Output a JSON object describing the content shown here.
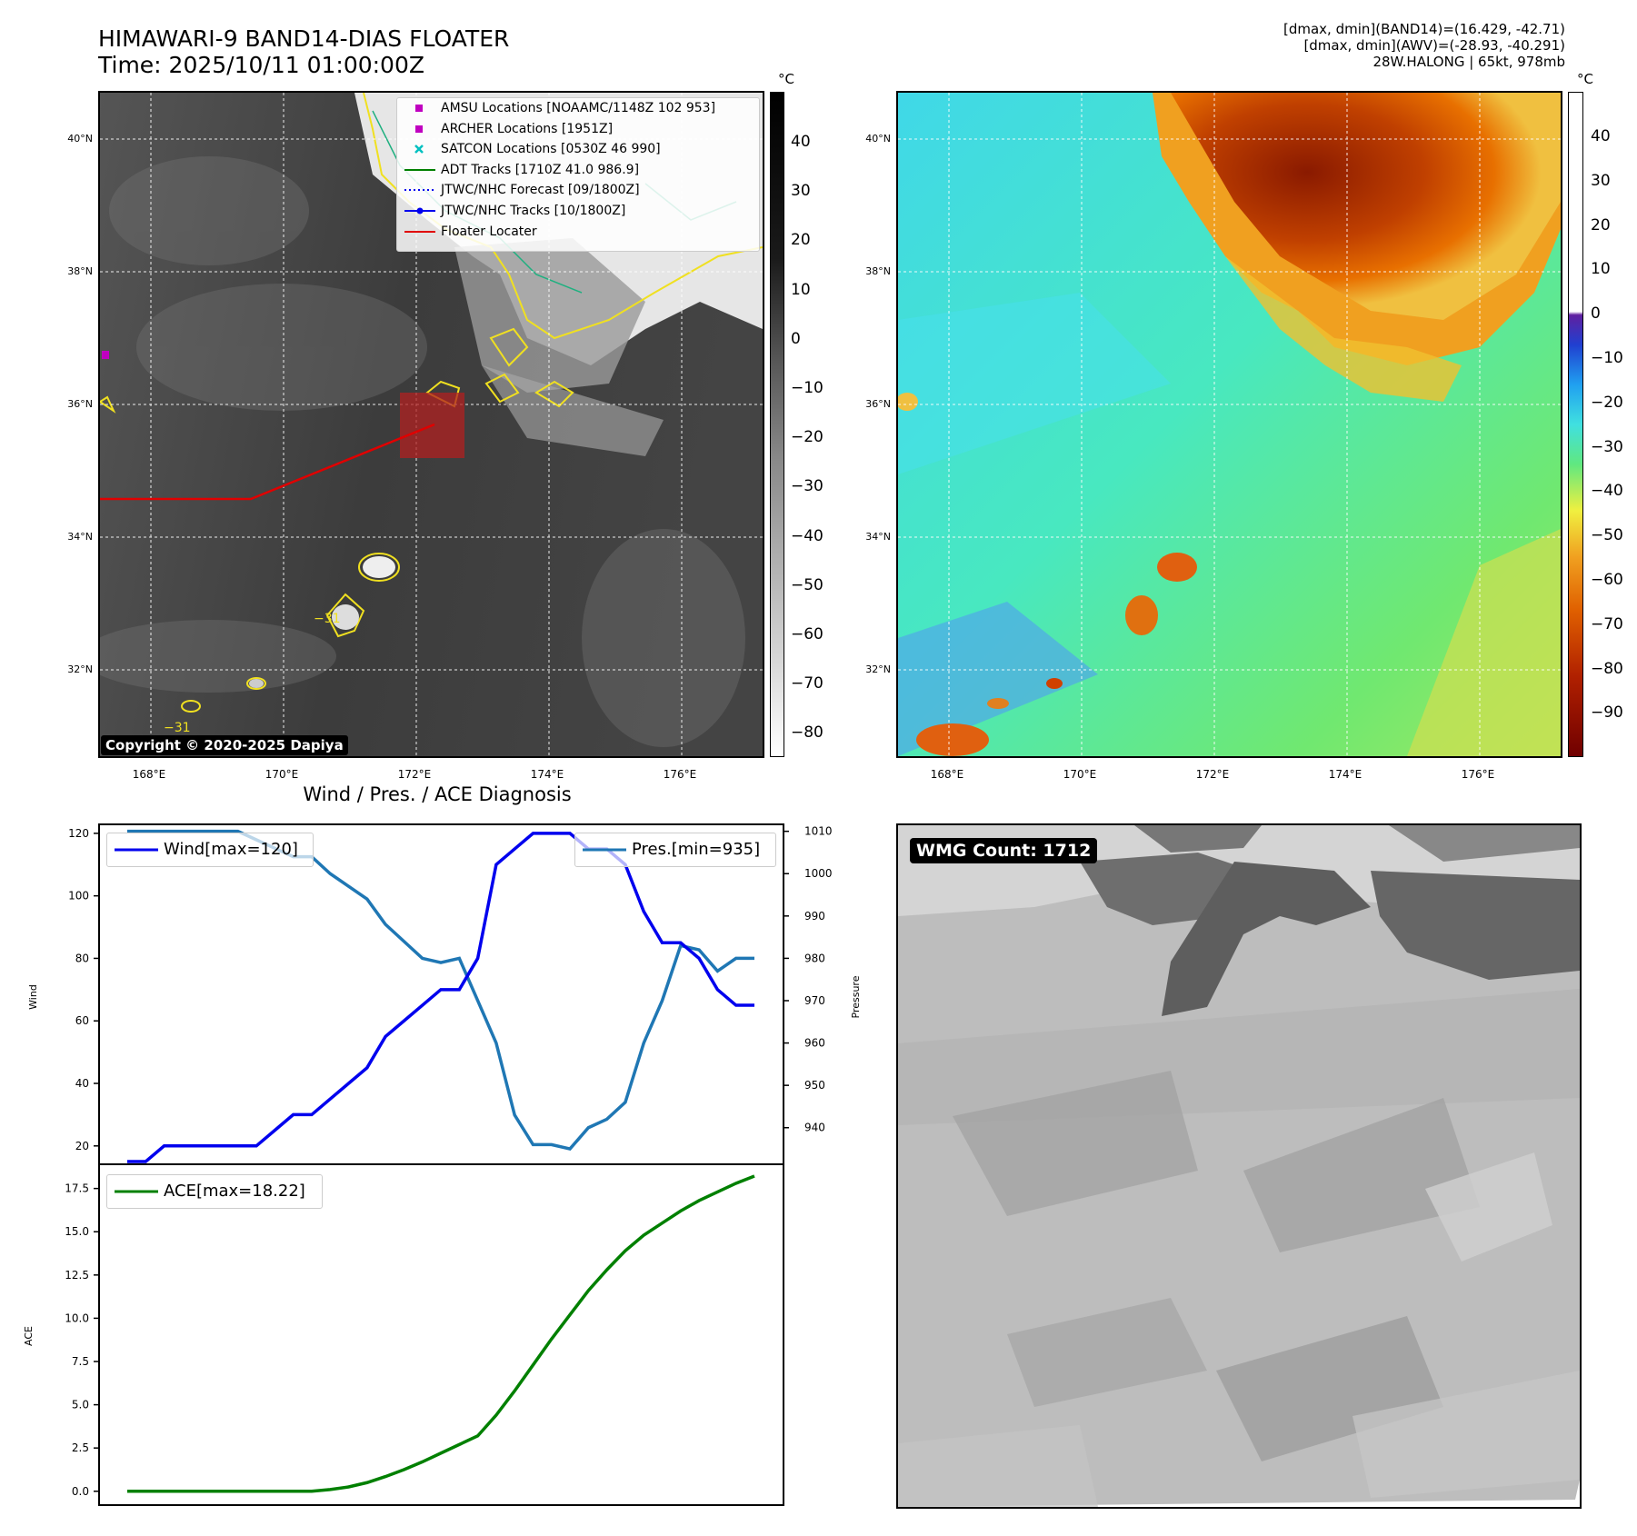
{
  "header": {
    "title_line1": "HIMAWARI-9 BAND14-DIAS FLOATER",
    "title_line2": "Time: 2025/10/11 01:00:00Z",
    "info_line1": "[dmax, dmin](BAND14)=(16.429, -42.71)",
    "info_line2": "[dmax, dmin](AWV)=(-28.93, -40.291)",
    "info_line3": "28W.HALONG | 65kt, 978mb"
  },
  "map_axes": {
    "lat_labels": [
      "40°N",
      "38°N",
      "36°N",
      "34°N",
      "32°N"
    ],
    "lon_labels": [
      "168°E",
      "170°E",
      "172°E",
      "174°E",
      "176°E"
    ]
  },
  "legend": {
    "amsu": "AMSU Locations [NOAAMC/1148Z 102 953]",
    "archer": "ARCHER Locations [1951Z]",
    "satcon": "SATCON Locations [0530Z 46 990]",
    "adt": "ADT Tracks [1710Z 41.0 986.9]",
    "forecast": "JTWC/NHC Forecast [09/1800Z]",
    "tracks": "JTWC/NHC Tracks [10/1800Z]",
    "floater": "Floater Locater"
  },
  "colorbar_gray": {
    "unit": "°C",
    "ticks": [
      "40",
      "30",
      "20",
      "10",
      "0",
      "−10",
      "−20",
      "−30",
      "−40",
      "−50",
      "−60",
      "−70",
      "−80"
    ]
  },
  "colorbar_color": {
    "unit": "°C",
    "ticks": [
      "40",
      "30",
      "20",
      "10",
      "0",
      "−10",
      "−20",
      "−30",
      "−40",
      "−50",
      "−60",
      "−70",
      "−80",
      "−90"
    ]
  },
  "contour_label": "−31",
  "copyright": "Copyright © 2020-2025 Dapiya",
  "wmg_label": "WMG Count: 1712",
  "colors": {
    "wind": "#0000ee",
    "pressure": "#1f77b4",
    "ace": "#008000",
    "track": "#e00000",
    "floater_box": "#b02020",
    "contour_yellow": "#f0e020",
    "marker_magenta": "#c000c0",
    "marker_cyan": "#00c0c0"
  },
  "chart_data": {
    "type": "line",
    "title": "Wind / Pres. / ACE Diagnosis",
    "wind_pressure": {
      "ylabel_left": "Wind",
      "ylabel_right": "Pressure",
      "yticks_left": [
        "120",
        "100",
        "80",
        "60",
        "40",
        "20"
      ],
      "yticks_right": [
        "1010",
        "1000",
        "990",
        "980",
        "970",
        "960",
        "950",
        "940"
      ],
      "ylim_left": [
        15,
        122
      ],
      "ylim_right": [
        932,
        1011
      ],
      "grid": false,
      "legend_left": "Wind[max=120]",
      "legend_right": "Pres.[min=935]",
      "series": [
        {
          "name": "Wind[max=120]",
          "axis": "left",
          "values": [
            15,
            15,
            20,
            20,
            20,
            20,
            20,
            20,
            25,
            30,
            30,
            35,
            40,
            45,
            55,
            60,
            65,
            70,
            70,
            80,
            110,
            115,
            120,
            120,
            120,
            115,
            115,
            110,
            95,
            85,
            85,
            80,
            70,
            65,
            65
          ]
        },
        {
          "name": "Pres.[min=935]",
          "axis": "right",
          "values": [
            1010,
            1010,
            1010,
            1010,
            1010,
            1010,
            1010,
            1008,
            1006,
            1004,
            1004,
            1000,
            997,
            994,
            988,
            984,
            980,
            979,
            980,
            970,
            960,
            943,
            936,
            936,
            935,
            940,
            942,
            946,
            960,
            970,
            983,
            982,
            977,
            980,
            980
          ]
        }
      ]
    },
    "ace": {
      "ylabel": "ACE",
      "yticks": [
        "17.5",
        "15.0",
        "12.5",
        "10.0",
        "7.5",
        "5.0",
        "2.5",
        "0.0"
      ],
      "ylim": [
        -0.8,
        18.9
      ],
      "grid": false,
      "series": [
        {
          "name": "ACE[max=18.22]",
          "values": [
            0,
            0,
            0,
            0,
            0,
            0,
            0,
            0,
            0,
            0,
            0,
            0.1,
            0.25,
            0.5,
            0.85,
            1.25,
            1.7,
            2.2,
            2.7,
            3.2,
            4.4,
            5.8,
            7.3,
            8.8,
            10.2,
            11.6,
            12.8,
            13.9,
            14.8,
            15.5,
            16.2,
            16.8,
            17.3,
            17.8,
            18.22
          ]
        }
      ]
    }
  }
}
